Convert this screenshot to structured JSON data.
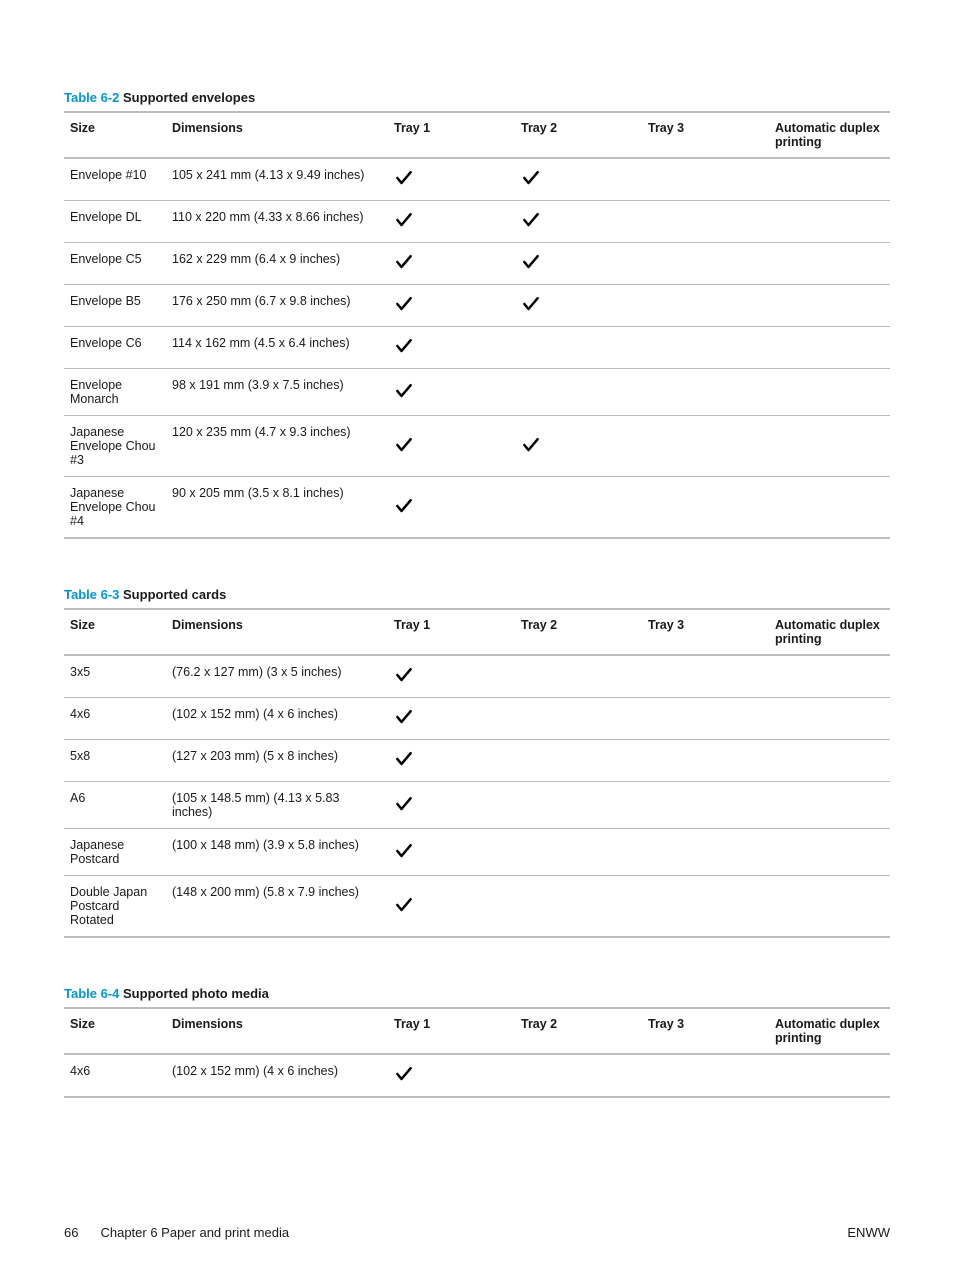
{
  "tables": {
    "envelopes": {
      "label": "Table 6-2",
      "title": " Supported envelopes",
      "columns": [
        "Size",
        "Dimensions",
        "Tray 1",
        "Tray 2",
        "Tray 3",
        "Automatic duplex printing"
      ],
      "rows": [
        {
          "size": "Envelope #10",
          "dim": "105 x 241 mm (4.13 x 9.49 inches)",
          "t1": true,
          "t2": true,
          "t3": false,
          "dup": false
        },
        {
          "size": "Envelope DL",
          "dim": "110 x 220 mm (4.33 x 8.66 inches)",
          "t1": true,
          "t2": true,
          "t3": false,
          "dup": false
        },
        {
          "size": "Envelope C5",
          "dim": "162 x 229 mm (6.4 x 9 inches)",
          "t1": true,
          "t2": true,
          "t3": false,
          "dup": false
        },
        {
          "size": "Envelope B5",
          "dim": "176 x 250 mm (6.7 x 9.8 inches)",
          "t1": true,
          "t2": true,
          "t3": false,
          "dup": false
        },
        {
          "size": "Envelope C6",
          "dim": "114 x 162 mm (4.5 x 6.4 inches)",
          "t1": true,
          "t2": false,
          "t3": false,
          "dup": false
        },
        {
          "size": "Envelope Monarch",
          "dim": "98 x 191 mm (3.9 x 7.5 inches)",
          "t1": true,
          "t2": false,
          "t3": false,
          "dup": false
        },
        {
          "size": "Japanese Envelope Chou #3",
          "dim": "120 x 235 mm (4.7 x 9.3 inches)",
          "t1": true,
          "t2": true,
          "t3": false,
          "dup": false
        },
        {
          "size": "Japanese Envelope Chou #4",
          "dim": "90 x 205 mm (3.5 x 8.1 inches)",
          "t1": true,
          "t2": false,
          "t3": false,
          "dup": false
        }
      ]
    },
    "cards": {
      "label": "Table 6-3",
      "title": " Supported cards",
      "columns": [
        "Size",
        "Dimensions",
        "Tray 1",
        "Tray 2",
        "Tray 3",
        "Automatic duplex printing"
      ],
      "rows": [
        {
          "size": "3x5",
          "dim": "(76.2 x 127 mm) (3 x 5 inches)",
          "t1": true,
          "t2": false,
          "t3": false,
          "dup": false
        },
        {
          "size": "4x6",
          "dim": "(102 x 152 mm) (4 x 6 inches)",
          "t1": true,
          "t2": false,
          "t3": false,
          "dup": false
        },
        {
          "size": "5x8",
          "dim": "(127 x 203 mm) (5 x 8 inches)",
          "t1": true,
          "t2": false,
          "t3": false,
          "dup": false
        },
        {
          "size": "A6",
          "dim": "(105 x 148.5 mm) (4.13 x 5.83 inches)",
          "t1": true,
          "t2": false,
          "t3": false,
          "dup": false
        },
        {
          "size": "Japanese Postcard",
          "dim": "(100 x 148 mm) (3.9 x 5.8 inches)",
          "t1": true,
          "t2": false,
          "t3": false,
          "dup": false
        },
        {
          "size": "Double Japan Postcard Rotated",
          "dim": "(148 x 200 mm) (5.8 x 7.9 inches)",
          "t1": true,
          "t2": false,
          "t3": false,
          "dup": false
        }
      ]
    },
    "photo": {
      "label": "Table 6-4",
      "title": " Supported photo media",
      "columns": [
        "Size",
        "Dimensions",
        "Tray 1",
        "Tray 2",
        "Tray 3",
        "Automatic duplex printing"
      ],
      "rows": [
        {
          "size": "4x6",
          "dim": "(102 x 152 mm) (4 x 6 inches)",
          "t1": true,
          "t2": false,
          "t3": false,
          "dup": false
        }
      ]
    }
  },
  "footer": {
    "page_num": "66",
    "chapter": "Chapter 6   Paper and print media",
    "right": "ENWW"
  }
}
